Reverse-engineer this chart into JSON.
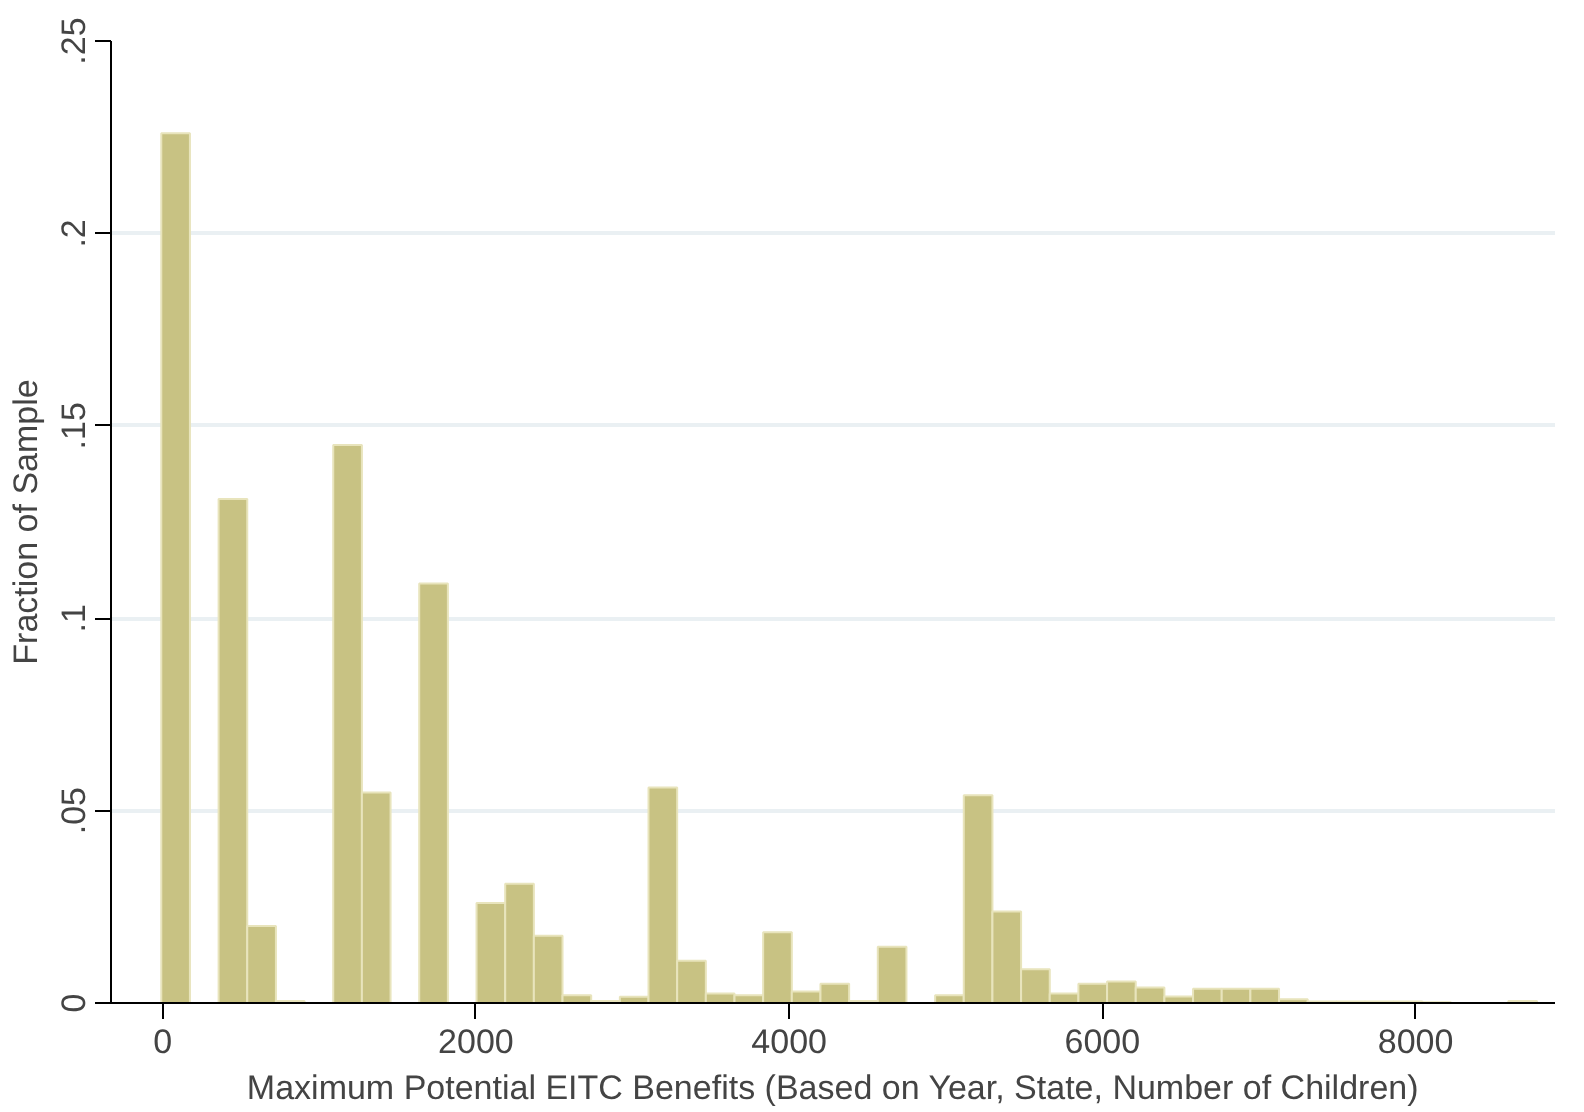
{
  "chart_data": {
    "type": "histogram",
    "xlabel": "Maximum Potential EITC Benefits (Based on Year, State, Number of Children)",
    "ylabel": "Fraction of Sample",
    "bins": [
      -9,
      174,
      357,
      540,
      723,
      906,
      1089,
      1272,
      1455,
      1638,
      1821,
      2004,
      2187,
      2370,
      2553,
      2736,
      2919,
      3102,
      3285,
      3468,
      3651,
      3834,
      4017,
      4200,
      4383,
      4566,
      4749,
      4932,
      5115,
      5298,
      5481,
      5664,
      5847,
      6030,
      6213,
      6396,
      6579,
      6762,
      6945,
      7128,
      7311,
      7494,
      7677,
      7860,
      8043,
      8226,
      8409,
      8592,
      8775
    ],
    "values": [
      0.226,
      0,
      0.131,
      0.02,
      0.0005,
      0,
      0.145,
      0.0547,
      0,
      0.109,
      0,
      0.026,
      0.031,
      0.0175,
      0.002,
      0.0005,
      0.0016,
      0.056,
      0.011,
      0.0025,
      0.002,
      0.0184,
      0.003,
      0.005,
      0.0005,
      0.0146,
      0,
      0.002,
      0.054,
      0.0238,
      0.0088,
      0.0025,
      0.005,
      0.0056,
      0.004,
      0.0017,
      0.0037,
      0.0037,
      0.0037,
      0.001,
      0.0004,
      0.0004,
      0.0004,
      0.0004,
      0.0002,
      0,
      0,
      0.0005
    ],
    "color": "#c8c283",
    "xlim": [
      -330,
      8890
    ],
    "ylim": [
      0,
      0.25
    ],
    "xticks": [
      0,
      2000,
      4000,
      6000,
      8000
    ],
    "yticks": [
      0,
      {
        "value": 0.05,
        "label": ".05"
      },
      {
        "value": 0.1,
        "label": ".1"
      },
      {
        "value": 0.15,
        "label": ".15"
      },
      {
        "value": 0.2,
        "label": ".2"
      },
      {
        "value": 0.25,
        "label": ".25"
      }
    ],
    "grid": "y"
  }
}
